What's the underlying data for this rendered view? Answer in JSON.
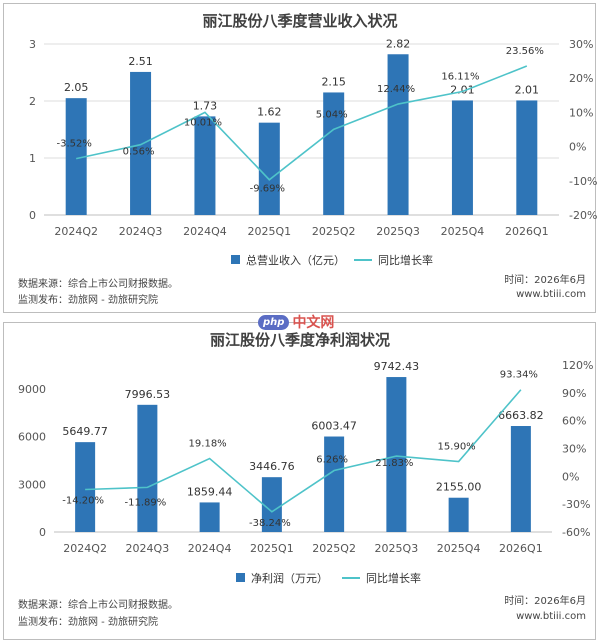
{
  "colors": {
    "bar": "#2e75b6",
    "line": "#4ec3c9",
    "grid": "#dcdcdc"
  },
  "chart_data": [
    {
      "type": "bar",
      "title": "丽江股份八季度营业收入状况",
      "categories": [
        "2024Q2",
        "2024Q3",
        "2024Q4",
        "2025Q1",
        "2025Q2",
        "2025Q3",
        "2025Q4",
        "2026Q1"
      ],
      "series": [
        {
          "name": "总营业收入（亿元）",
          "type": "bar",
          "axis": "left",
          "values": [
            2.05,
            2.51,
            1.73,
            1.62,
            2.15,
            2.82,
            2.01,
            2.01
          ],
          "labels": [
            "2.05",
            "2.51",
            "1.73",
            "1.62",
            "2.15",
            "2.82",
            "2.01",
            "2.01"
          ]
        },
        {
          "name": "同比增长率",
          "type": "line",
          "axis": "right",
          "values": [
            -3.52,
            0.56,
            10.01,
            -9.69,
            5.04,
            12.44,
            16.11,
            23.56
          ],
          "labels": [
            "-3.52%",
            "0.56%",
            "10.01%",
            "-9.69%",
            "5.04%",
            "12.44%",
            "16.11%",
            "23.56%"
          ]
        }
      ],
      "ylim_left": [
        0,
        3
      ],
      "yticks_left": [
        "0",
        "1",
        "2",
        "3"
      ],
      "ylim_right": [
        -20,
        30
      ],
      "yticks_right": [
        "-20%",
        "-10%",
        "0%",
        "10%",
        "20%",
        "30%"
      ],
      "grid": true,
      "legend_position": "bottom",
      "source": "数据来源：综合上市公司财报数据。",
      "publisher": "监测发布：劲旅网 - 劲旅研究院",
      "time": "时间：2026年6月",
      "site": "www.btiii.com"
    },
    {
      "type": "bar",
      "title": "丽江股份八季度净利润状况",
      "categories": [
        "2024Q2",
        "2024Q3",
        "2024Q4",
        "2025Q1",
        "2025Q2",
        "2025Q3",
        "2025Q4",
        "2026Q1"
      ],
      "series": [
        {
          "name": "净利润（万元）",
          "type": "bar",
          "axis": "left",
          "values": [
            5649.77,
            7996.53,
            1859.44,
            3446.76,
            6003.47,
            9742.43,
            2155.0,
            6663.82
          ],
          "labels": [
            "5649.77",
            "7996.53",
            "1859.44",
            "3446.76",
            "6003.47",
            "9742.43",
            "2155.00",
            "6663.82"
          ]
        },
        {
          "name": "同比增长率",
          "type": "line",
          "axis": "right",
          "values": [
            -14.2,
            -11.89,
            19.18,
            -38.24,
            6.26,
            21.83,
            15.9,
            93.34
          ],
          "labels": [
            "-14.20%",
            "-11.89%",
            "19.18%",
            "-38.24%",
            "6.26%",
            "21.83%",
            "15.90%",
            "93.34%"
          ]
        }
      ],
      "ylim_left": [
        0,
        10500
      ],
      "yticks_left": [
        "0",
        "3000",
        "6000",
        "9000"
      ],
      "ytick_values_left": [
        0,
        3000,
        6000,
        9000
      ],
      "ylim_right": [
        -60,
        120
      ],
      "yticks_right": [
        "-60%",
        "-30%",
        "0%",
        "30%",
        "60%",
        "90%",
        "120%"
      ],
      "grid": false,
      "legend_position": "bottom",
      "source": "数据来源：综合上市公司财报数据。",
      "publisher": "监测发布：劲旅网 - 劲旅研究院",
      "time": "时间：2026年6月",
      "site": "www.btiii.com"
    }
  ],
  "watermark": {
    "badge": "php",
    "text": "中文网"
  }
}
